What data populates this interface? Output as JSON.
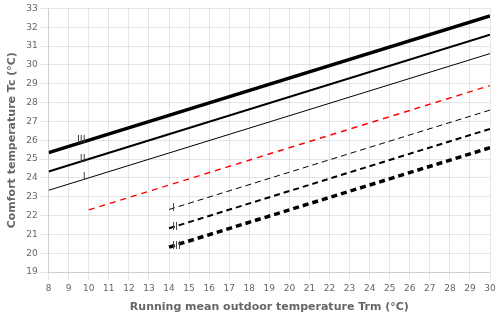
{
  "chart_data": {
    "type": "line",
    "xlabel": "Running mean outdoor temperature Trm (°C)",
    "ylabel": "Comfort temperature Tc (°C)",
    "xlim": [
      8,
      30
    ],
    "ylim": [
      19,
      33
    ],
    "xticks": [
      8,
      9,
      10,
      11,
      12,
      13,
      14,
      15,
      16,
      17,
      18,
      19,
      20,
      21,
      22,
      23,
      24,
      25,
      26,
      27,
      28,
      29,
      30
    ],
    "yticks": [
      19,
      20,
      21,
      22,
      23,
      24,
      25,
      26,
      27,
      28,
      29,
      30,
      31,
      32,
      33
    ],
    "grid": true,
    "series": [
      {
        "x": [
          8,
          30
        ],
        "values": [
          23.34,
          30.6
        ],
        "color": "black",
        "line_style": "solid"
      },
      {
        "x": [
          8,
          30
        ],
        "values": [
          24.34,
          31.6
        ],
        "color": "black",
        "line_style": "solid"
      },
      {
        "x": [
          8,
          30
        ],
        "values": [
          25.34,
          32.6
        ],
        "color": "black",
        "line_style": "solid"
      },
      {
        "x": [
          14,
          30
        ],
        "values": [
          22.32,
          27.6
        ],
        "color": "black",
        "line_style": "dashed"
      },
      {
        "x": [
          14,
          30
        ],
        "values": [
          21.32,
          26.6
        ],
        "color": "black",
        "line_style": "dashed"
      },
      {
        "x": [
          14,
          30
        ],
        "values": [
          20.32,
          25.6
        ],
        "color": "black",
        "line_style": "dashed"
      },
      {
        "x": [
          10,
          30
        ],
        "values": [
          22.3,
          28.9
        ],
        "color": "red",
        "line_style": "dashed"
      }
    ],
    "annotations": [
      {
        "text": "I",
        "x": 9.85,
        "y": 24.0,
        "align": "right"
      },
      {
        "text": "II",
        "x": 9.85,
        "y": 25.0,
        "align": "right"
      },
      {
        "text": "III",
        "x": 9.85,
        "y": 26.0,
        "align": "right"
      },
      {
        "text": "I",
        "x": 14.15,
        "y": 22.353,
        "align": "left"
      },
      {
        "text": "II",
        "x": 14.15,
        "y": 21.353,
        "align": "left"
      },
      {
        "text": "III",
        "x": 14.15,
        "y": 20.353,
        "align": "left"
      }
    ]
  }
}
